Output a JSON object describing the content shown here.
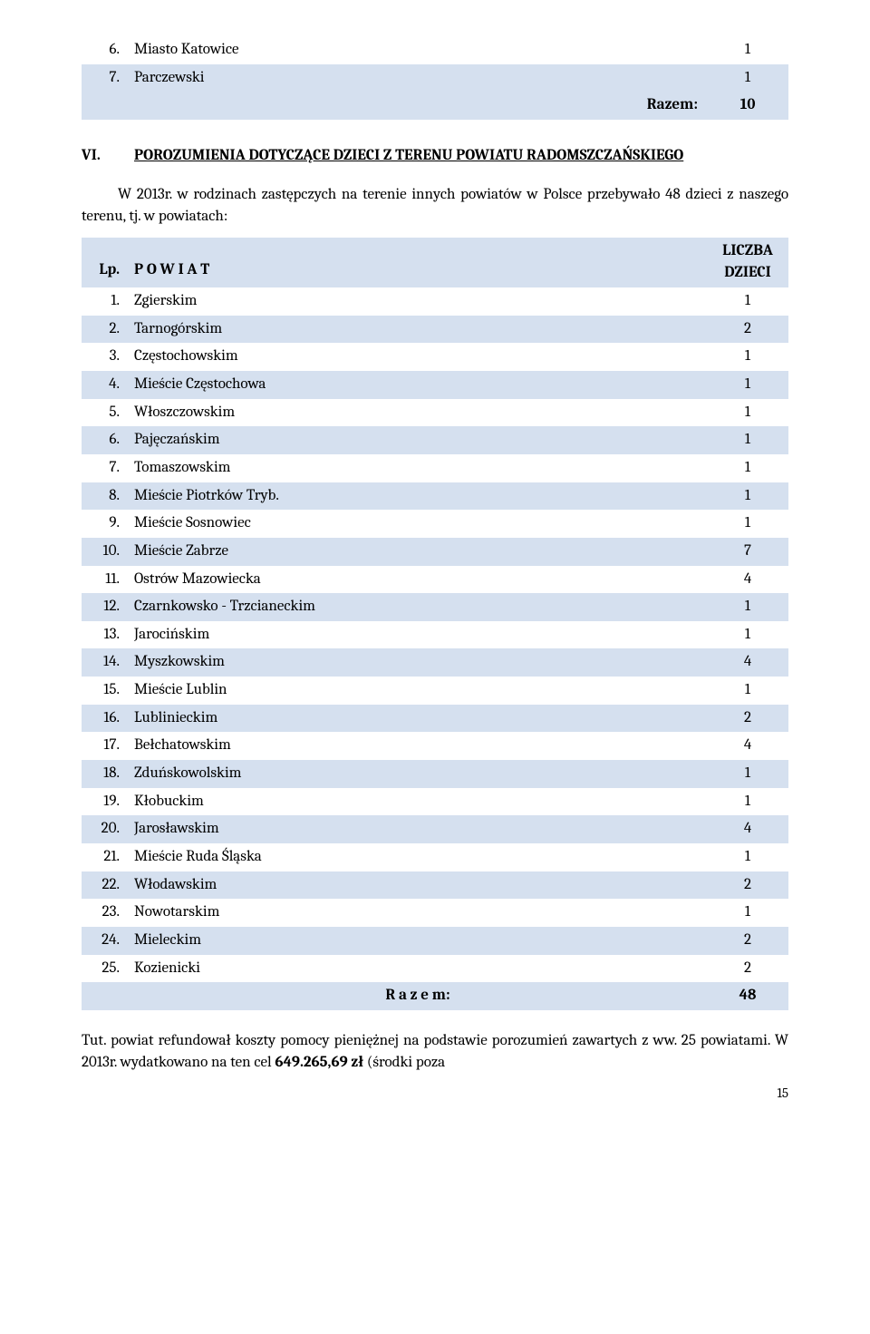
{
  "top_rows": [
    {
      "num": "6.",
      "label": "Miasto Katowice",
      "val": "1"
    },
    {
      "num": "7.",
      "label": "Parczewski",
      "val": "1"
    }
  ],
  "top_total": {
    "label": "Razem:",
    "val": "10"
  },
  "section": {
    "roman": "VI.",
    "title": "POROZUMIENIA DOTYCZĄCE DZIECI Z TERENU POWIATU RADOMSZCZAŃSKIEGO"
  },
  "para": "W 2013r. w rodzinach zastępczych na terenie innych powiatów w Polsce przebywało 48 dzieci z naszego terenu, tj. w powiatach:",
  "header": {
    "lp": "Lp.",
    "powiat": "P O W I A T",
    "liczba": "LICZBA DZIECI"
  },
  "rows": [
    {
      "num": "1.",
      "label": "Zgierskim",
      "val": "1"
    },
    {
      "num": "2.",
      "label": "Tarnogórskim",
      "val": "2"
    },
    {
      "num": "3.",
      "label": "Częstochowskim",
      "val": "1"
    },
    {
      "num": "4.",
      "label": "Mieście Częstochowa",
      "val": "1"
    },
    {
      "num": "5.",
      "label": "Włoszczowskim",
      "val": "1"
    },
    {
      "num": "6.",
      "label": "Pajęczańskim",
      "val": "1"
    },
    {
      "num": "7.",
      "label": "Tomaszowskim",
      "val": "1"
    },
    {
      "num": "8.",
      "label": "Mieście Piotrków Tryb.",
      "val": "1"
    },
    {
      "num": "9.",
      "label": "Mieście Sosnowiec",
      "val": "1"
    },
    {
      "num": "10.",
      "label": "Mieście Zabrze",
      "val": "7"
    },
    {
      "num": "11.",
      "label": "Ostrów Mazowiecka",
      "val": "4"
    },
    {
      "num": "12.",
      "label": "Czarnkowsko - Trzcianeckim",
      "val": "1"
    },
    {
      "num": "13.",
      "label": "Jarocińskim",
      "val": "1"
    },
    {
      "num": "14.",
      "label": "Myszkowskim",
      "val": "4"
    },
    {
      "num": "15.",
      "label": "Mieście Lublin",
      "val": "1"
    },
    {
      "num": "16.",
      "label": "Lublinieckim",
      "val": "2"
    },
    {
      "num": "17.",
      "label": "Bełchatowskim",
      "val": "4"
    },
    {
      "num": "18.",
      "label": "Zduńskowolskim",
      "val": "1"
    },
    {
      "num": "19.",
      "label": "Kłobuckim",
      "val": "1"
    },
    {
      "num": "20.",
      "label": "Jarosławskim",
      "val": "4"
    },
    {
      "num": "21.",
      "label": "Mieście Ruda Śląska",
      "val": "1"
    },
    {
      "num": "22.",
      "label": "Włodawskim",
      "val": "2"
    },
    {
      "num": "23.",
      "label": "Nowotarskim",
      "val": "1"
    },
    {
      "num": "24.",
      "label": "Mieleckim",
      "val": "2"
    },
    {
      "num": "25.",
      "label": "Kozienicki",
      "val": "2"
    }
  ],
  "main_total": {
    "label": "R a z e m:",
    "val": "48"
  },
  "bottom": {
    "prefix": "Tut. powiat refundował koszty pomocy pieniężnej na podstawie porozumień zawartych z ww. 25 powiatami. W 2013r. wydatkowano na ten cel ",
    "bold": "649.265,69 zł",
    "suffix": " (środki poza"
  },
  "page_number": "15",
  "colors": {
    "row_blue": "#d5e0ef",
    "text": "#000000",
    "bg": "#ffffff"
  }
}
